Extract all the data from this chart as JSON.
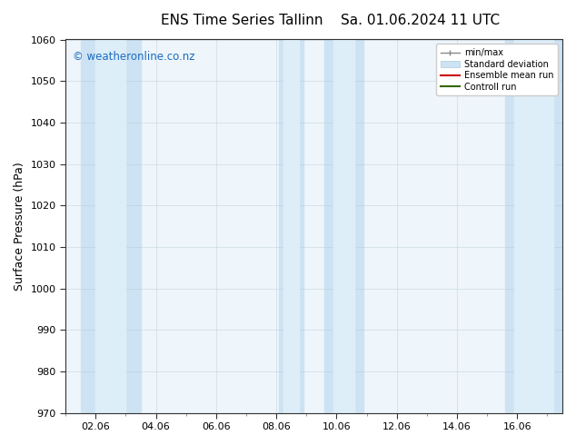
{
  "title": "ENS Time Series Tallinn",
  "title2": "Sa. 01.06.2024 11 UTC",
  "ylabel": "Surface Pressure (hPa)",
  "ylim": [
    970,
    1060
  ],
  "yticks": [
    970,
    980,
    990,
    1000,
    1010,
    1020,
    1030,
    1040,
    1050,
    1060
  ],
  "xtick_labels": [
    "02.06",
    "04.06",
    "06.06",
    "08.06",
    "10.06",
    "12.06",
    "14.06",
    "16.06"
  ],
  "xtick_positions": [
    1,
    3,
    5,
    7,
    9,
    11,
    13,
    15
  ],
  "xlim": [
    0,
    16.5
  ],
  "watermark": "© weatheronline.co.nz",
  "watermark_color": "#1a6bbf",
  "bg_color": "#ffffff",
  "plot_bg_color": "#eef5fb",
  "shaded_outer_color": "#cde3f3",
  "shaded_inner_color": "#ddeef8",
  "bands": [
    {
      "outer": [
        0.5,
        2.5
      ],
      "inner": [
        1.0,
        2.0
      ]
    },
    {
      "outer": [
        7.1,
        7.9
      ],
      "inner": [
        7.25,
        7.75
      ]
    },
    {
      "outer": [
        8.6,
        9.9
      ],
      "inner": [
        8.9,
        9.6
      ]
    },
    {
      "outer": [
        14.6,
        16.5
      ],
      "inner": [
        14.9,
        16.2
      ]
    }
  ]
}
